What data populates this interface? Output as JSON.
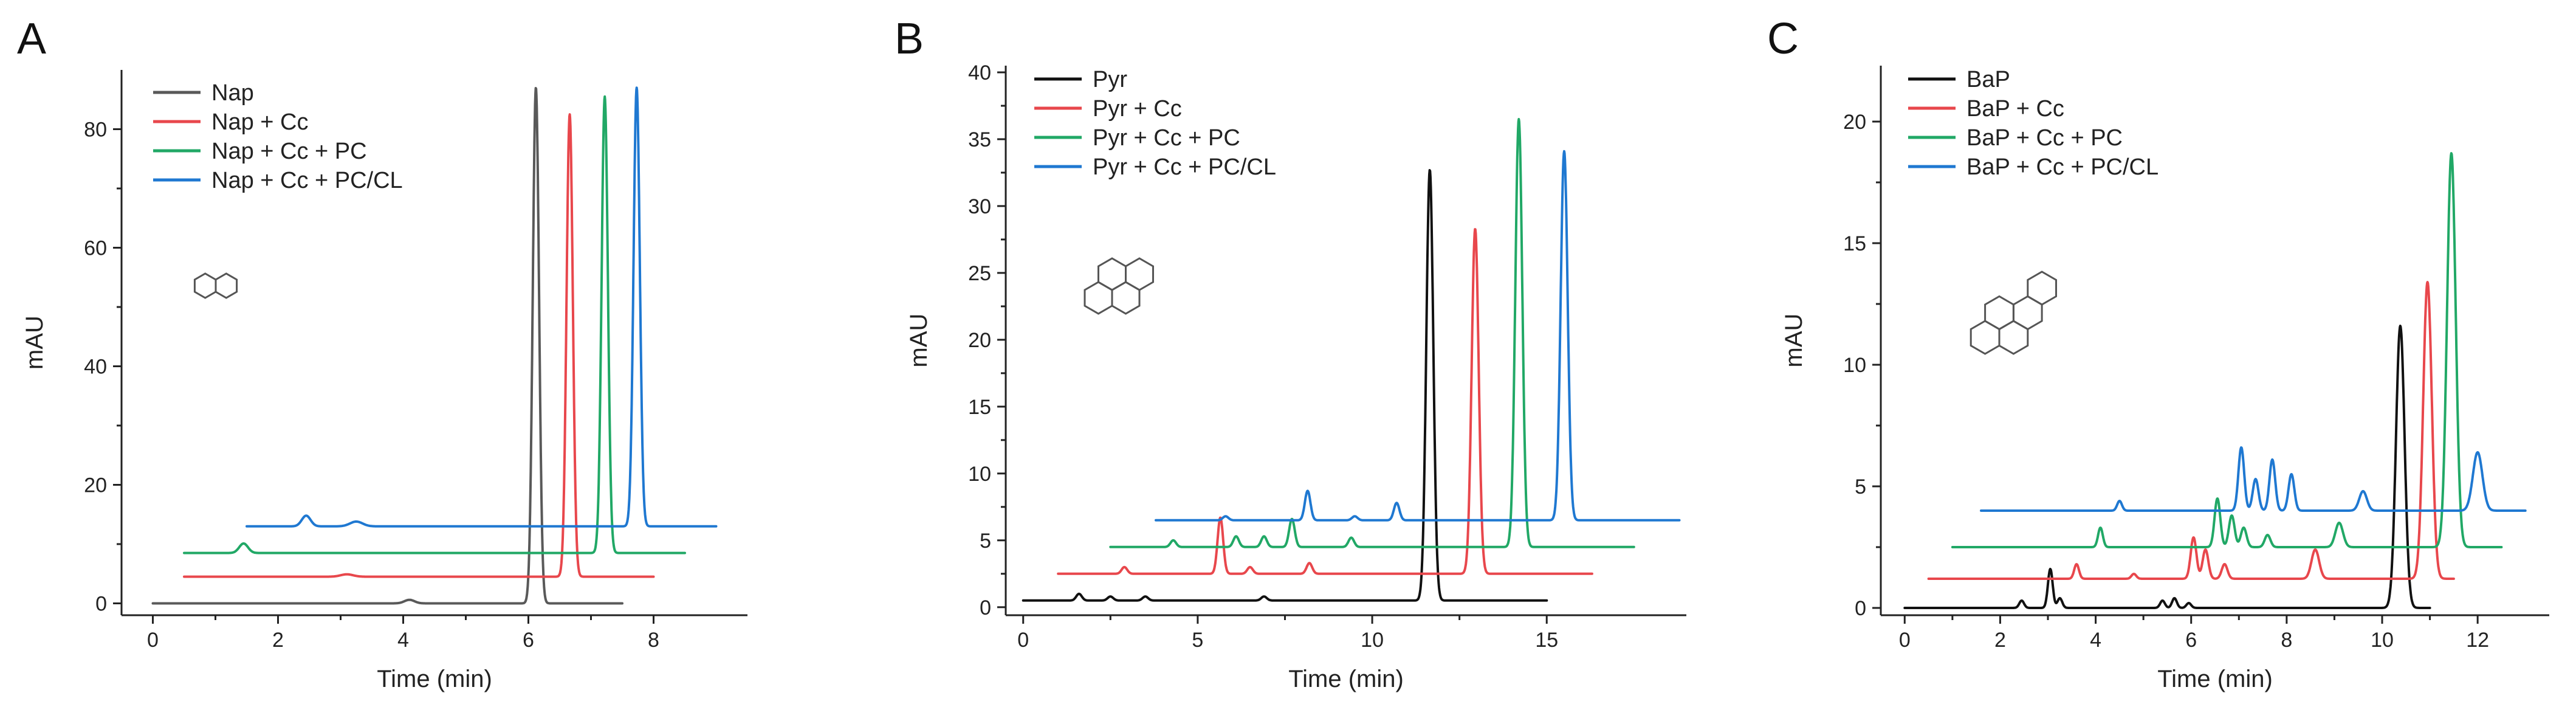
{
  "chart_data": [
    {
      "type": "line",
      "panel": "A",
      "xlabel": "Time (min)",
      "ylabel": "mAU",
      "xlim": [
        -0.5,
        9.5
      ],
      "ylim": [
        -2,
        90
      ],
      "xticks": [
        0,
        2,
        4,
        6,
        8
      ],
      "yticks": [
        0,
        20,
        40,
        60,
        80
      ],
      "legend": [
        "Nap",
        "Nap + Cc",
        "Nap + Cc + PC",
        "Nap + Cc + PC/CL"
      ],
      "structure": "naphthalene",
      "series": [
        {
          "name": "Nap",
          "color": "#595959",
          "baseline": 0,
          "x_range": [
            0,
            7.5
          ],
          "peaks": [
            {
              "t": 6.12,
              "h": 87,
              "w": 0.05
            },
            {
              "t": 4.1,
              "h": 0.6,
              "w": 0.08
            }
          ]
        },
        {
          "name": "Nap + Cc",
          "color": "#e8474c",
          "baseline": 4.5,
          "x_range": [
            0.5,
            8.0
          ],
          "peaks": [
            {
              "t": 6.66,
              "h": 78,
              "w": 0.05
            },
            {
              "t": 3.1,
              "h": 0.4,
              "w": 0.1
            }
          ]
        },
        {
          "name": "Nap + Cc + PC",
          "color": "#21a866",
          "baseline": 8.5,
          "x_range": [
            0.5,
            8.5
          ],
          "peaks": [
            {
              "t": 1.45,
              "h": 1.6,
              "w": 0.07
            },
            {
              "t": 7.22,
              "h": 77,
              "w": 0.05
            }
          ]
        },
        {
          "name": "Nap + Cc + PC/CL",
          "color": "#1f78d1",
          "baseline": 13,
          "x_range": [
            1.5,
            9.0
          ],
          "peaks": [
            {
              "t": 2.45,
              "h": 1.8,
              "w": 0.07
            },
            {
              "t": 3.25,
              "h": 0.8,
              "w": 0.1
            },
            {
              "t": 7.73,
              "h": 74,
              "w": 0.05
            }
          ]
        }
      ]
    },
    {
      "type": "line",
      "panel": "B",
      "xlabel": "Time (min)",
      "ylabel": "mAU",
      "xlim": [
        -0.5,
        19.0
      ],
      "ylim": [
        -0.6,
        40.5
      ],
      "xticks": [
        0,
        5,
        10,
        15
      ],
      "yticks": [
        0,
        5,
        10,
        15,
        20,
        25,
        30,
        35,
        40
      ],
      "legend": [
        "Pyr",
        "Pyr + Cc",
        "Pyr + Cc + PC",
        "Pyr + Cc + PC/CL"
      ],
      "structure": "pyrene",
      "series": [
        {
          "name": "Pyr",
          "color": "#111111",
          "baseline": 0.5,
          "x_range": [
            0,
            15.0
          ],
          "peaks": [
            {
              "t": 1.6,
              "h": 0.5,
              "w": 0.08
            },
            {
              "t": 2.5,
              "h": 0.3,
              "w": 0.08
            },
            {
              "t": 3.5,
              "h": 0.3,
              "w": 0.08
            },
            {
              "t": 6.9,
              "h": 0.3,
              "w": 0.08
            },
            {
              "t": 11.65,
              "h": 32.2,
              "w": 0.1
            }
          ]
        },
        {
          "name": "Pyr + Cc",
          "color": "#e8474c",
          "baseline": 2.5,
          "x_range": [
            1.0,
            16.3
          ],
          "peaks": [
            {
              "t": 2.9,
              "h": 0.5,
              "w": 0.08
            },
            {
              "t": 5.65,
              "h": 4.2,
              "w": 0.08
            },
            {
              "t": 6.5,
              "h": 0.5,
              "w": 0.08
            },
            {
              "t": 8.2,
              "h": 0.8,
              "w": 0.08
            },
            {
              "t": 12.95,
              "h": 25.8,
              "w": 0.1
            }
          ]
        },
        {
          "name": "Pyr + Cc + PC",
          "color": "#21a866",
          "baseline": 4.5,
          "x_range": [
            2.5,
            17.5
          ],
          "peaks": [
            {
              "t": 4.3,
              "h": 0.5,
              "w": 0.08
            },
            {
              "t": 6.1,
              "h": 0.8,
              "w": 0.08
            },
            {
              "t": 6.9,
              "h": 0.8,
              "w": 0.08
            },
            {
              "t": 7.7,
              "h": 2.1,
              "w": 0.08
            },
            {
              "t": 9.4,
              "h": 0.7,
              "w": 0.08
            },
            {
              "t": 14.2,
              "h": 32.0,
              "w": 0.1
            }
          ]
        },
        {
          "name": "Pyr + Cc + PC/CL",
          "color": "#1f78d1",
          "baseline": 6.5,
          "x_range": [
            3.8,
            18.8
          ],
          "peaks": [
            {
              "t": 5.8,
              "h": 0.3,
              "w": 0.08
            },
            {
              "t": 8.15,
              "h": 2.2,
              "w": 0.08
            },
            {
              "t": 9.5,
              "h": 0.3,
              "w": 0.08
            },
            {
              "t": 10.7,
              "h": 1.3,
              "w": 0.08
            },
            {
              "t": 15.5,
              "h": 27.6,
              "w": 0.1
            }
          ]
        }
      ]
    },
    {
      "type": "line",
      "panel": "C",
      "xlabel": "Time (min)",
      "ylabel": "mAU",
      "xlim": [
        -0.5,
        13.5
      ],
      "ylim": [
        -0.3,
        22.3
      ],
      "xticks": [
        0,
        2,
        4,
        6,
        8,
        10,
        12
      ],
      "yticks": [
        0,
        5,
        10,
        15,
        20
      ],
      "legend": [
        "BaP",
        "BaP + Cc",
        "BaP + Cc + PC",
        "BaP + Cc + PC/CL"
      ],
      "structure": "benzo[a]pyrene",
      "series": [
        {
          "name": "BaP",
          "color": "#111111",
          "baseline": 0,
          "x_range": [
            0,
            11.0
          ],
          "peaks": [
            {
              "t": 2.45,
              "h": 0.3,
              "w": 0.05
            },
            {
              "t": 3.05,
              "h": 1.6,
              "w": 0.05
            },
            {
              "t": 3.25,
              "h": 0.4,
              "w": 0.05
            },
            {
              "t": 5.4,
              "h": 0.3,
              "w": 0.05
            },
            {
              "t": 5.65,
              "h": 0.4,
              "w": 0.05
            },
            {
              "t": 5.95,
              "h": 0.2,
              "w": 0.05
            },
            {
              "t": 10.38,
              "h": 11.6,
              "w": 0.09
            }
          ]
        },
        {
          "name": "BaP + Cc",
          "color": "#e8474c",
          "baseline": 1.2,
          "x_range": [
            0.5,
            11.5
          ],
          "peaks": [
            {
              "t": 3.6,
              "h": 0.6,
              "w": 0.05
            },
            {
              "t": 4.8,
              "h": 0.2,
              "w": 0.05
            },
            {
              "t": 6.05,
              "h": 1.7,
              "w": 0.06
            },
            {
              "t": 6.3,
              "h": 1.2,
              "w": 0.06
            },
            {
              "t": 6.7,
              "h": 0.6,
              "w": 0.06
            },
            {
              "t": 8.6,
              "h": 1.2,
              "w": 0.08
            },
            {
              "t": 10.95,
              "h": 12.2,
              "w": 0.09
            }
          ]
        },
        {
          "name": "BaP + Cc + PC",
          "color": "#21a866",
          "baseline": 2.5,
          "x_range": [
            1.0,
            12.5
          ],
          "peaks": [
            {
              "t": 4.1,
              "h": 0.8,
              "w": 0.05
            },
            {
              "t": 6.55,
              "h": 2.0,
              "w": 0.06
            },
            {
              "t": 6.85,
              "h": 1.3,
              "w": 0.06
            },
            {
              "t": 7.1,
              "h": 0.8,
              "w": 0.06
            },
            {
              "t": 7.6,
              "h": 0.5,
              "w": 0.06
            },
            {
              "t": 9.1,
              "h": 1.0,
              "w": 0.08
            },
            {
              "t": 11.45,
              "h": 16.2,
              "w": 0.09
            }
          ]
        },
        {
          "name": "BaP + Cc + PC/CL",
          "color": "#1f78d1",
          "baseline": 4.0,
          "x_range": [
            1.6,
            13.0
          ],
          "peaks": [
            {
              "t": 4.5,
              "h": 0.4,
              "w": 0.05
            },
            {
              "t": 7.05,
              "h": 2.6,
              "w": 0.06
            },
            {
              "t": 7.35,
              "h": 1.3,
              "w": 0.06
            },
            {
              "t": 7.7,
              "h": 2.1,
              "w": 0.06
            },
            {
              "t": 8.1,
              "h": 1.5,
              "w": 0.06
            },
            {
              "t": 9.6,
              "h": 0.8,
              "w": 0.08
            },
            {
              "t": 12.0,
              "h": 2.4,
              "w": 0.1
            }
          ]
        }
      ]
    }
  ]
}
